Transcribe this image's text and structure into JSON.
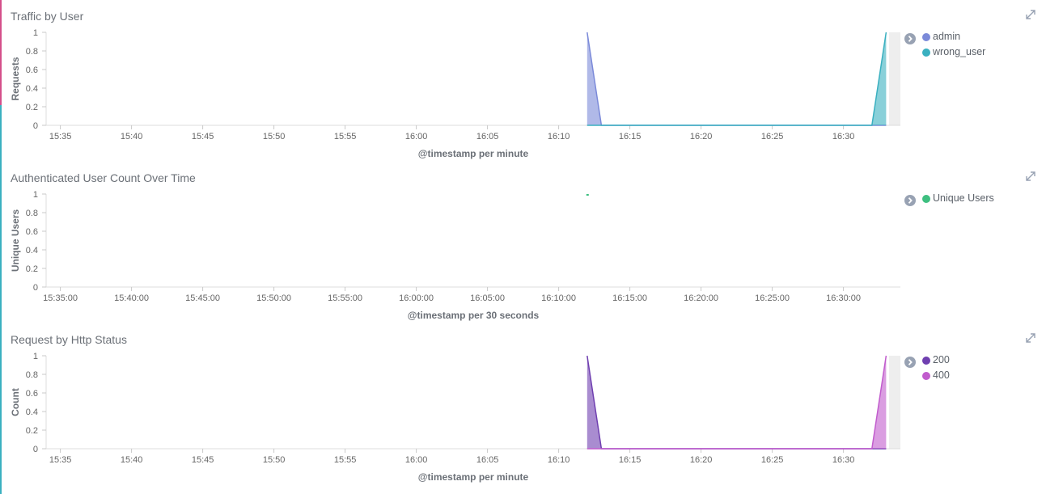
{
  "panels": [
    {
      "title": "Traffic by User",
      "legend": [
        {
          "label": "admin",
          "color": "#7b8ad9"
        },
        {
          "label": "wrong_user",
          "color": "#3ab0c0"
        }
      ],
      "chart_data": {
        "type": "area",
        "title": "Traffic by User",
        "xlabel": "@timestamp per minute",
        "ylabel": "Requests",
        "x_ticks": [
          "15:35",
          "15:40",
          "15:45",
          "15:50",
          "15:55",
          "16:00",
          "16:05",
          "16:10",
          "16:15",
          "16:20",
          "16:25",
          "16:30"
        ],
        "y_ticks": [
          "0",
          "0.2",
          "0.4",
          "0.6",
          "0.8",
          "1"
        ],
        "ylim": [
          0,
          1
        ],
        "xlim": [
          "15:34",
          "16:34"
        ],
        "series": [
          {
            "name": "admin",
            "color": "#7b8ad9",
            "points": [
              [
                "16:12",
                1
              ],
              [
                "16:13",
                0
              ],
              [
                "16:32",
                0
              ],
              [
                "16:33",
                0
              ]
            ]
          },
          {
            "name": "wrong_user",
            "color": "#3ab0c0",
            "points": [
              [
                "16:12",
                0
              ],
              [
                "16:13",
                0
              ],
              [
                "16:32",
                0
              ],
              [
                "16:33",
                1
              ]
            ]
          }
        ],
        "grid": false,
        "legend_position": "right"
      }
    },
    {
      "title": "Authenticated User Count Over Time",
      "legend": [
        {
          "label": "Unique Users",
          "color": "#3ebf80"
        }
      ],
      "chart_data": {
        "type": "line",
        "title": "Authenticated User Count Over Time",
        "xlabel": "@timestamp per 30 seconds",
        "ylabel": "Unique Users",
        "x_ticks": [
          "15:35:00",
          "15:40:00",
          "15:45:00",
          "15:50:00",
          "15:55:00",
          "16:00:00",
          "16:05:00",
          "16:10:00",
          "16:15:00",
          "16:20:00",
          "16:25:00",
          "16:30:00"
        ],
        "y_ticks": [
          "0",
          "0.2",
          "0.4",
          "0.6",
          "0.8",
          "1"
        ],
        "ylim": [
          0,
          1
        ],
        "xlim": [
          "15:34",
          "16:34"
        ],
        "series": [
          {
            "name": "Unique Users",
            "color": "#3ebf80",
            "points": [
              [
                "16:12",
                1
              ]
            ]
          }
        ],
        "grid": false,
        "legend_position": "right"
      }
    },
    {
      "title": "Request by Http Status",
      "legend": [
        {
          "label": "200",
          "color": "#6f3fb0"
        },
        {
          "label": "400",
          "color": "#c15ccd"
        }
      ],
      "chart_data": {
        "type": "area",
        "title": "Request by Http Status",
        "xlabel": "@timestamp per minute",
        "ylabel": "Count",
        "x_ticks": [
          "15:35",
          "15:40",
          "15:45",
          "15:50",
          "15:55",
          "16:00",
          "16:05",
          "16:10",
          "16:15",
          "16:20",
          "16:25",
          "16:30"
        ],
        "y_ticks": [
          "0",
          "0.2",
          "0.4",
          "0.6",
          "0.8",
          "1"
        ],
        "ylim": [
          0,
          1
        ],
        "xlim": [
          "15:34",
          "16:34"
        ],
        "series": [
          {
            "name": "200",
            "color": "#6f3fb0",
            "points": [
              [
                "16:12",
                1
              ],
              [
                "16:13",
                0
              ],
              [
                "16:32",
                0
              ],
              [
                "16:33",
                0
              ]
            ]
          },
          {
            "name": "400",
            "color": "#c15ccd",
            "points": [
              [
                "16:12",
                0
              ],
              [
                "16:13",
                0
              ],
              [
                "16:32",
                0
              ],
              [
                "16:33",
                1
              ]
            ]
          }
        ],
        "grid": false,
        "legend_position": "right"
      }
    }
  ],
  "style": {
    "left_edge_colors": [
      "#d44f8a",
      "#3ab0c0"
    ]
  }
}
